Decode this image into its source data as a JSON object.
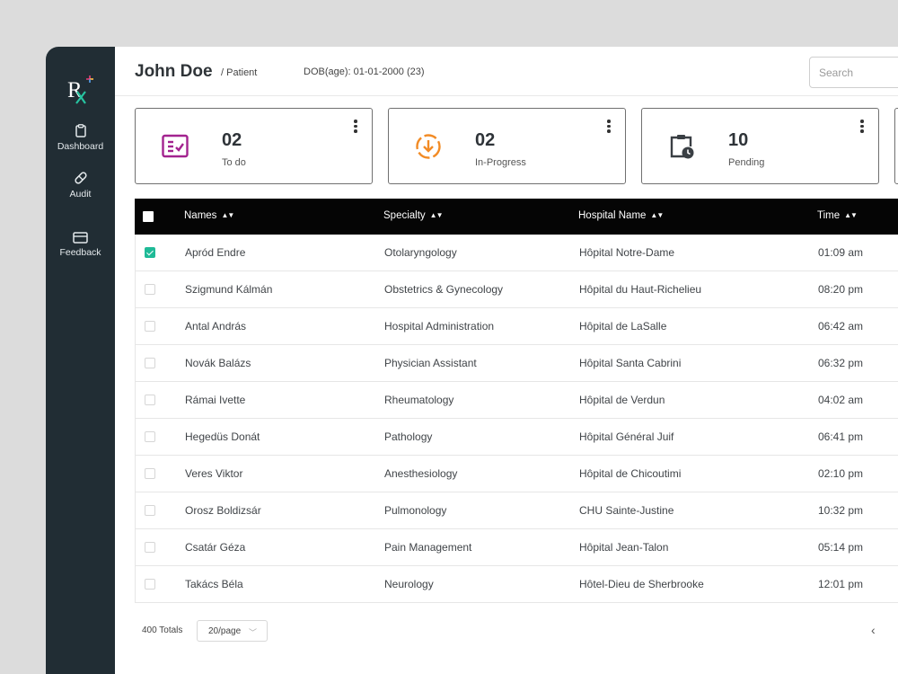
{
  "patient": {
    "name": "John Doe",
    "role": "/ Patient",
    "dob": "DOB(age): 01-01-2000 (23)"
  },
  "search": {
    "placeholder": "Search"
  },
  "sidebar": {
    "items": [
      {
        "label": "Dashboard",
        "icon": "clipboard-icon"
      },
      {
        "label": "Audit",
        "icon": "pill-icon"
      },
      {
        "label": "Feedback",
        "icon": "card-icon"
      }
    ]
  },
  "cards": [
    {
      "value": "02",
      "label": "To do",
      "icon": "checklist-icon",
      "color": "#a3238f"
    },
    {
      "value": "02",
      "label": "In-Progress",
      "icon": "download-circle-icon",
      "color": "#f28b25"
    },
    {
      "value": "10",
      "label": "Pending",
      "icon": "clipboard-clock-icon",
      "color": "#3a3f44"
    }
  ],
  "table": {
    "columns": [
      "Names",
      "Specialty",
      "Hospital Name",
      "Time"
    ],
    "rows": [
      {
        "checked": true,
        "name": "Apród Endre",
        "specialty": "Otolaryngology",
        "hospital": "Hôpital Notre-Dame",
        "time": "01:09 am"
      },
      {
        "checked": false,
        "name": "Szigmund Kálmán",
        "specialty": "Obstetrics & Gynecology",
        "hospital": "Hôpital du Haut-Richelieu",
        "time": "08:20 pm"
      },
      {
        "checked": false,
        "name": "Antal András",
        "specialty": "Hospital Administration",
        "hospital": "Hôpital de LaSalle",
        "time": "06:42 am"
      },
      {
        "checked": false,
        "name": "Novák Balázs",
        "specialty": "Physician Assistant",
        "hospital": "Hôpital Santa Cabrini",
        "time": "06:32 pm"
      },
      {
        "checked": false,
        "name": "Rámai Ivette",
        "specialty": "Rheumatology",
        "hospital": "Hôpital de Verdun",
        "time": "04:02 am"
      },
      {
        "checked": false,
        "name": "Hegedüs Donát",
        "specialty": "Pathology",
        "hospital": "Hôpital Général Juif",
        "time": "06:41 pm"
      },
      {
        "checked": false,
        "name": "Veres Viktor",
        "specialty": "Anesthesiology",
        "hospital": "Hôpital de Chicoutimi",
        "time": "02:10 pm"
      },
      {
        "checked": false,
        "name": "Orosz Boldizsár",
        "specialty": "Pulmonology",
        "hospital": "CHU Sainte-Justine",
        "time": "10:32 pm"
      },
      {
        "checked": false,
        "name": "Csatár Géza",
        "specialty": "Pain Management",
        "hospital": "Hôpital Jean-Talon",
        "time": "05:14 pm"
      },
      {
        "checked": false,
        "name": "Takács Béla",
        "specialty": "Neurology",
        "hospital": "Hôtel-Dieu de Sherbrooke",
        "time": "12:01 pm"
      }
    ]
  },
  "pagination": {
    "totals": "400 Totals",
    "page_size": "20/page"
  },
  "colors": {
    "sidebar": "#212d34",
    "accent": "#1fba97",
    "header": "#050505"
  }
}
